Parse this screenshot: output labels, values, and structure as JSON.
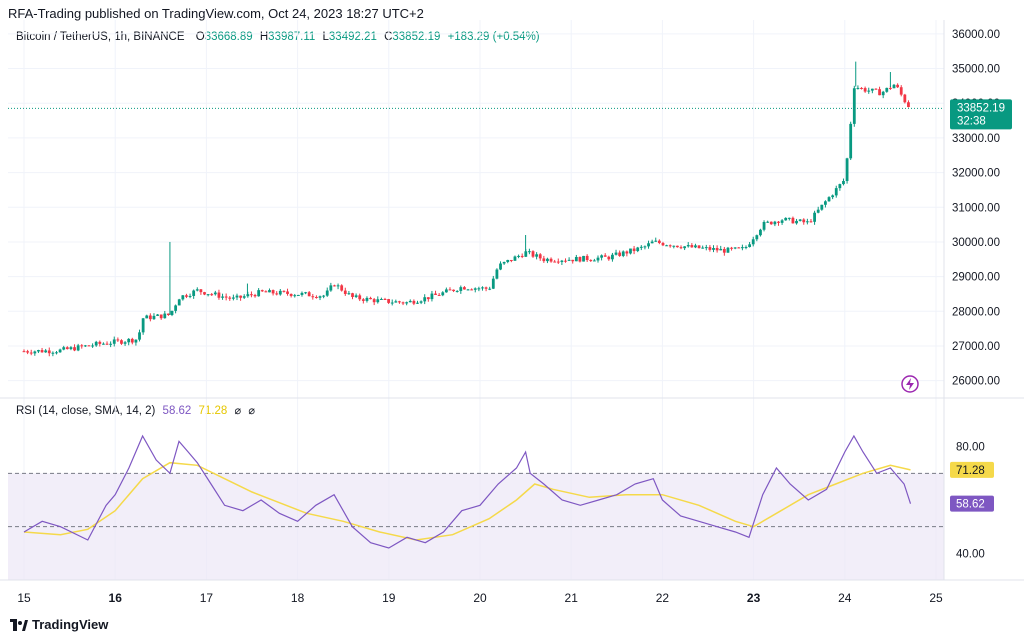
{
  "header": {
    "published": "RFA-Trading published on TradingView.com, Oct 24, 2023 18:27 UTC+2"
  },
  "legend": {
    "symbol": "Bitcoin / TetherUS, 1h, BINANCE",
    "o_label": "O",
    "o": "33668.89",
    "h_label": "H",
    "h": "33987.11",
    "l_label": "L",
    "l": "33492.21",
    "c_label": "C",
    "c": "33852.19",
    "change": "+183.29 (+0.54%)"
  },
  "price_badge": {
    "price": "33852.19",
    "countdown": "32:38"
  },
  "rsi_legend": {
    "title": "RSI (14, close, SMA, 14, 2)",
    "rsi": "58.62",
    "sma": "71.28",
    "icon1": "⌀",
    "icon2": "⌀"
  },
  "rsi_badges": {
    "sma": "71.28",
    "rsi": "58.62"
  },
  "footer": {
    "brand": "TradingView",
    "logo_icon": "tradingview-logo-icon"
  },
  "colors": {
    "up": "#089981",
    "down": "#f23645",
    "rsi": "#7e57c2",
    "sma": "#f5d94a",
    "band": "#ede7f6",
    "grid": "#f0f3fa"
  },
  "chart_data": [
    {
      "type": "candlestick",
      "title": "Bitcoin / TetherUS, 1h, BINANCE",
      "ylim": [
        25500,
        36400
      ],
      "yticks": [
        "36000.00",
        "35000.00",
        "34000.00",
        "33000.00",
        "32000.00",
        "31000.00",
        "30000.00",
        "29000.00",
        "28000.00",
        "27000.00",
        "26000.00"
      ],
      "xticks": [
        "15",
        "16",
        "17",
        "18",
        "19",
        "20",
        "21",
        "22",
        "23",
        "24",
        "25"
      ],
      "xticks_bold": [
        "16",
        "23"
      ],
      "last_price": 33852.19,
      "close_path": [
        [
          15.0,
          26850
        ],
        [
          15.4,
          26870
        ],
        [
          15.8,
          27050
        ],
        [
          16.25,
          27200
        ],
        [
          16.3,
          27800
        ],
        [
          16.6,
          27900
        ],
        [
          16.7,
          28400
        ],
        [
          16.9,
          28600
        ],
        [
          17.3,
          28350
        ],
        [
          17.6,
          28550
        ],
        [
          18.0,
          28500
        ],
        [
          18.3,
          28450
        ],
        [
          18.4,
          28800
        ],
        [
          18.6,
          28400
        ],
        [
          18.9,
          28300
        ],
        [
          19.2,
          28250
        ],
        [
          19.5,
          28450
        ],
        [
          19.8,
          28700
        ],
        [
          20.1,
          28650
        ],
        [
          20.2,
          29300
        ],
        [
          20.5,
          29700
        ],
        [
          20.7,
          29500
        ],
        [
          21.0,
          29500
        ],
        [
          21.4,
          29550
        ],
        [
          21.8,
          29850
        ],
        [
          21.9,
          30000
        ],
        [
          22.3,
          29850
        ],
        [
          22.7,
          29750
        ],
        [
          22.9,
          29800
        ],
        [
          23.1,
          30500
        ],
        [
          23.3,
          30650
        ],
        [
          23.6,
          30550
        ],
        [
          23.8,
          31200
        ],
        [
          24.0,
          31800
        ],
        [
          24.05,
          33000
        ],
        [
          24.1,
          34500
        ],
        [
          24.2,
          34400
        ],
        [
          24.4,
          34300
        ],
        [
          24.55,
          34550
        ],
        [
          24.65,
          34100
        ],
        [
          24.72,
          33852
        ]
      ],
      "spikes": [
        [
          16.6,
          30000
        ],
        [
          17.45,
          28800
        ],
        [
          20.5,
          30200
        ],
        [
          24.12,
          35200
        ],
        [
          24.5,
          34900
        ]
      ]
    },
    {
      "type": "line",
      "title": "RSI (14, close, SMA, 14, 2)",
      "ylim": [
        30,
        90
      ],
      "yticks": [
        "80.00",
        "40.00"
      ],
      "band": [
        30,
        70
      ],
      "rsi": [
        [
          15.0,
          48
        ],
        [
          15.2,
          52
        ],
        [
          15.4,
          50
        ],
        [
          15.7,
          45
        ],
        [
          15.9,
          58
        ],
        [
          16.0,
          62
        ],
        [
          16.15,
          72
        ],
        [
          16.3,
          84
        ],
        [
          16.45,
          75
        ],
        [
          16.6,
          70
        ],
        [
          16.7,
          82
        ],
        [
          16.8,
          78
        ],
        [
          16.9,
          74
        ],
        [
          17.05,
          66
        ],
        [
          17.2,
          58
        ],
        [
          17.4,
          56
        ],
        [
          17.6,
          60
        ],
        [
          17.8,
          55
        ],
        [
          18.0,
          52
        ],
        [
          18.2,
          58
        ],
        [
          18.4,
          62
        ],
        [
          18.6,
          50
        ],
        [
          18.8,
          44
        ],
        [
          19.0,
          42
        ],
        [
          19.2,
          46
        ],
        [
          19.4,
          44
        ],
        [
          19.6,
          48
        ],
        [
          19.8,
          56
        ],
        [
          20.0,
          58
        ],
        [
          20.2,
          66
        ],
        [
          20.4,
          72
        ],
        [
          20.5,
          78
        ],
        [
          20.55,
          70
        ],
        [
          20.7,
          66
        ],
        [
          20.9,
          60
        ],
        [
          21.1,
          58
        ],
        [
          21.3,
          60
        ],
        [
          21.5,
          62
        ],
        [
          21.7,
          66
        ],
        [
          21.9,
          68
        ],
        [
          22.0,
          60
        ],
        [
          22.2,
          54
        ],
        [
          22.4,
          52
        ],
        [
          22.6,
          50
        ],
        [
          22.8,
          48
        ],
        [
          22.95,
          46
        ],
        [
          23.1,
          62
        ],
        [
          23.25,
          72
        ],
        [
          23.4,
          66
        ],
        [
          23.6,
          60
        ],
        [
          23.8,
          64
        ],
        [
          24.0,
          78
        ],
        [
          24.1,
          84
        ],
        [
          24.2,
          78
        ],
        [
          24.35,
          70
        ],
        [
          24.5,
          72
        ],
        [
          24.65,
          66
        ],
        [
          24.72,
          58.62
        ]
      ],
      "sma": [
        [
          15.0,
          48
        ],
        [
          15.4,
          47
        ],
        [
          15.7,
          49
        ],
        [
          16.0,
          56
        ],
        [
          16.3,
          68
        ],
        [
          16.6,
          74
        ],
        [
          16.9,
          73
        ],
        [
          17.2,
          68
        ],
        [
          17.5,
          63
        ],
        [
          17.8,
          59
        ],
        [
          18.1,
          55
        ],
        [
          18.5,
          52
        ],
        [
          18.9,
          48
        ],
        [
          19.3,
          45
        ],
        [
          19.7,
          47
        ],
        [
          20.1,
          53
        ],
        [
          20.4,
          60
        ],
        [
          20.6,
          66
        ],
        [
          20.8,
          64
        ],
        [
          21.2,
          61
        ],
        [
          21.6,
          62
        ],
        [
          22.0,
          62
        ],
        [
          22.4,
          58
        ],
        [
          22.8,
          52
        ],
        [
          23.0,
          50
        ],
        [
          23.3,
          56
        ],
        [
          23.6,
          62
        ],
        [
          23.9,
          66
        ],
        [
          24.2,
          70
        ],
        [
          24.5,
          73
        ],
        [
          24.72,
          71.28
        ]
      ]
    }
  ]
}
